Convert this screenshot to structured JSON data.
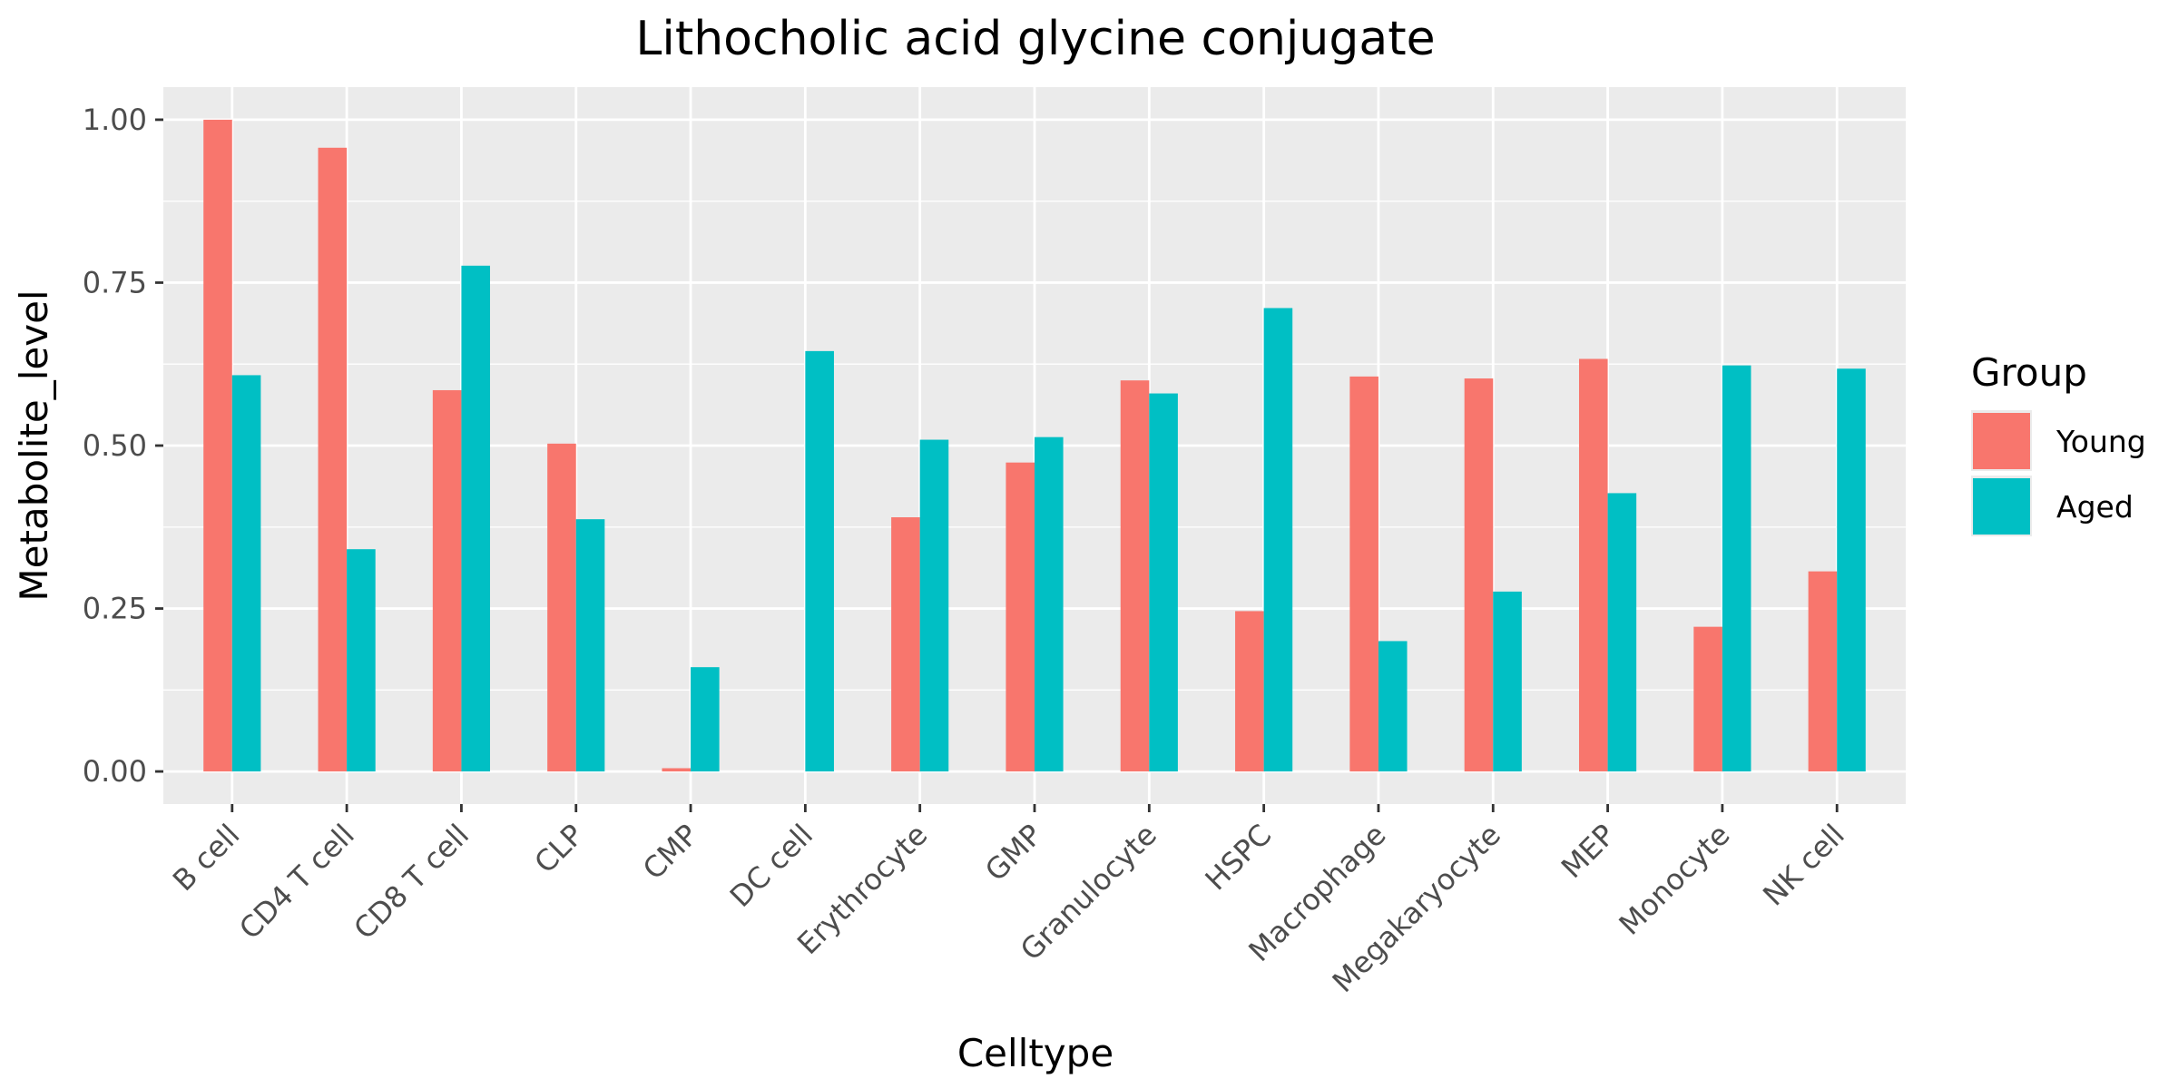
{
  "chart_data": {
    "type": "bar",
    "title": "Lithocholic acid glycine conjugate",
    "xlabel": "Celltype",
    "ylabel": "Metabolite_level",
    "ylim": [
      -0.05,
      1.05
    ],
    "yticks": [
      0.0,
      0.25,
      0.5,
      0.75,
      1.0
    ],
    "ytick_labels": [
      "0.00",
      "0.25",
      "0.50",
      "0.75",
      "1.00"
    ],
    "grid": true,
    "legend": {
      "title": "Group",
      "position": "right"
    },
    "categories": [
      "B cell",
      "CD4 T cell",
      "CD8 T cell",
      "CLP",
      "CMP",
      "DC cell",
      "Erythrocyte",
      "GMP",
      "Granulocyte",
      "HSPC",
      "Macrophage",
      "Megakaryocyte",
      "MEP",
      "Monocyte",
      "NK cell"
    ],
    "series": [
      {
        "name": "Young",
        "color": "#F8766D",
        "values": [
          1.0,
          0.957,
          0.585,
          0.503,
          0.005,
          0.0,
          0.39,
          0.474,
          0.6,
          0.246,
          0.606,
          0.603,
          0.633,
          0.222,
          0.307
        ]
      },
      {
        "name": "Aged",
        "color": "#00BFC4",
        "values": [
          0.608,
          0.341,
          0.776,
          0.387,
          0.16,
          0.645,
          0.509,
          0.513,
          0.58,
          0.711,
          0.2,
          0.276,
          0.427,
          0.623,
          0.618
        ]
      }
    ]
  }
}
